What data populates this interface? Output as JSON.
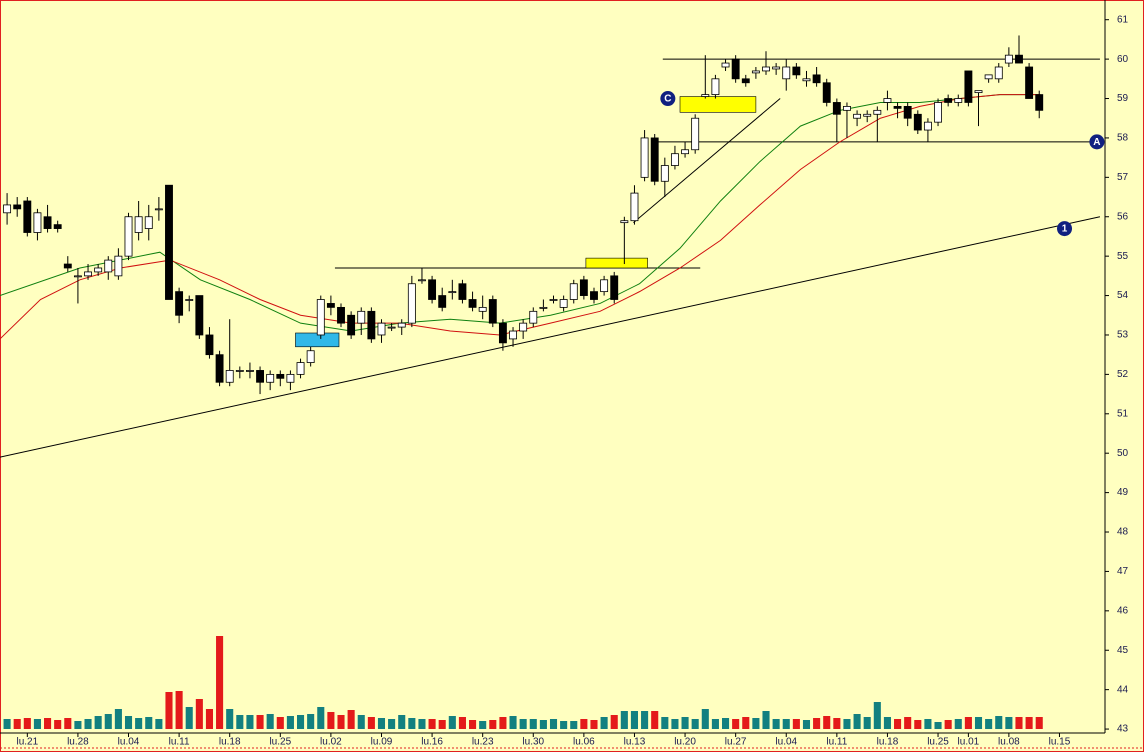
{
  "chart_data": {
    "type": "candlestick",
    "up_color": "#ffffff",
    "down_color": "#000000",
    "ylim": [
      42.9,
      61.5
    ],
    "xlim": [
      -0.7,
      108.5
    ],
    "yticks": [
      43,
      44,
      45,
      46,
      47,
      48,
      49,
      50,
      51,
      52,
      53,
      54,
      55,
      56,
      57,
      58,
      59,
      60,
      61
    ],
    "xticks": [
      {
        "value": 2,
        "label": "lu.21"
      },
      {
        "value": 7,
        "label": "lu.28"
      },
      {
        "value": 12,
        "label": "lu.04"
      },
      {
        "value": 17,
        "label": "lu.11"
      },
      {
        "value": 22,
        "label": "lu.18"
      },
      {
        "value": 27,
        "label": "lu.25"
      },
      {
        "value": 32,
        "label": "lu.02"
      },
      {
        "value": 37,
        "label": "lu.09"
      },
      {
        "value": 42,
        "label": "lu.16"
      },
      {
        "value": 47,
        "label": "lu.23"
      },
      {
        "value": 52,
        "label": "lu.30"
      },
      {
        "value": 57,
        "label": "lu.06"
      },
      {
        "value": 62,
        "label": "lu.13"
      },
      {
        "value": 67,
        "label": "lu.20"
      },
      {
        "value": 72,
        "label": "lu.27"
      },
      {
        "value": 77,
        "label": "lu.04"
      },
      {
        "value": 82,
        "label": "lu.11"
      },
      {
        "value": 87,
        "label": "lu.18"
      },
      {
        "value": 92,
        "label": "lu.25"
      },
      {
        "value": 95,
        "label": "lu.01"
      },
      {
        "value": 99,
        "label": "lu.08"
      },
      {
        "value": 104,
        "label": "lu.15"
      }
    ],
    "ohlc": [
      [
        56.1,
        56.6,
        55.8,
        56.3
      ],
      [
        56.3,
        56.5,
        56.0,
        56.2
      ],
      [
        56.4,
        56.5,
        55.5,
        55.6
      ],
      [
        55.6,
        56.2,
        55.4,
        56.1
      ],
      [
        56.0,
        56.3,
        55.6,
        55.7
      ],
      [
        55.8,
        55.9,
        55.6,
        55.7
      ],
      [
        54.8,
        55.0,
        54.6,
        54.7
      ],
      [
        54.5,
        54.7,
        53.8,
        54.5
      ],
      [
        54.5,
        54.8,
        54.4,
        54.6
      ],
      [
        54.6,
        54.8,
        54.5,
        54.7
      ],
      [
        54.6,
        55.0,
        54.4,
        54.9
      ],
      [
        54.5,
        55.2,
        54.4,
        55.0
      ],
      [
        55.0,
        56.1,
        54.9,
        56.0
      ],
      [
        55.6,
        56.4,
        55.4,
        56.0
      ],
      [
        55.7,
        56.3,
        55.4,
        56.0
      ],
      [
        56.2,
        56.5,
        55.9,
        56.2
      ],
      [
        56.8,
        56.8,
        53.9,
        53.9
      ],
      [
        54.1,
        54.2,
        53.3,
        53.5
      ],
      [
        53.9,
        54.0,
        53.6,
        53.9
      ],
      [
        54.0,
        54.0,
        52.9,
        53.0
      ],
      [
        53.0,
        53.2,
        52.4,
        52.5
      ],
      [
        52.5,
        52.6,
        51.7,
        51.8
      ],
      [
        51.8,
        53.4,
        51.7,
        52.1
      ],
      [
        52.1,
        52.2,
        51.9,
        52.1
      ],
      [
        52.1,
        52.3,
        51.9,
        52.1
      ],
      [
        52.1,
        52.2,
        51.5,
        51.8
      ],
      [
        51.8,
        52.1,
        51.6,
        52.0
      ],
      [
        52.0,
        52.1,
        51.7,
        51.9
      ],
      [
        51.8,
        52.1,
        51.6,
        52.0
      ],
      [
        52.0,
        52.4,
        51.9,
        52.3
      ],
      [
        52.3,
        52.7,
        52.2,
        52.6
      ],
      [
        53.0,
        54.0,
        52.9,
        53.9
      ],
      [
        53.8,
        54.0,
        53.5,
        53.7
      ],
      [
        53.7,
        53.8,
        53.2,
        53.3
      ],
      [
        53.5,
        53.6,
        52.9,
        53.0
      ],
      [
        53.3,
        53.7,
        53.0,
        53.6
      ],
      [
        53.6,
        53.7,
        52.8,
        52.9
      ],
      [
        53.0,
        53.4,
        52.8,
        53.3
      ],
      [
        53.2,
        53.3,
        53.1,
        53.2
      ],
      [
        53.2,
        53.4,
        53.0,
        53.3
      ],
      [
        53.3,
        54.5,
        53.2,
        54.3
      ],
      [
        54.4,
        54.7,
        54.3,
        54.4
      ],
      [
        54.4,
        54.5,
        53.8,
        53.9
      ],
      [
        54.0,
        54.2,
        53.6,
        53.7
      ],
      [
        54.1,
        54.4,
        53.9,
        54.1
      ],
      [
        54.3,
        54.4,
        53.8,
        53.9
      ],
      [
        53.9,
        54.1,
        53.6,
        53.7
      ],
      [
        53.6,
        54.0,
        53.4,
        53.7
      ],
      [
        53.9,
        54.0,
        53.2,
        53.3
      ],
      [
        53.3,
        53.4,
        52.6,
        52.8
      ],
      [
        52.9,
        53.2,
        52.7,
        53.1
      ],
      [
        53.1,
        53.4,
        52.9,
        53.3
      ],
      [
        53.3,
        53.7,
        53.2,
        53.6
      ],
      [
        53.7,
        53.9,
        53.6,
        53.7
      ],
      [
        53.9,
        54.0,
        53.8,
        53.9
      ],
      [
        53.7,
        54.0,
        53.6,
        53.9
      ],
      [
        53.9,
        54.4,
        53.8,
        54.3
      ],
      [
        54.4,
        54.5,
        53.9,
        54.0
      ],
      [
        54.1,
        54.2,
        53.8,
        53.9
      ],
      [
        54.1,
        54.5,
        54.0,
        54.4
      ],
      [
        54.5,
        54.6,
        53.8,
        53.9
      ],
      [
        55.85,
        56.0,
        54.8,
        55.9
      ],
      [
        55.9,
        56.8,
        55.8,
        56.6
      ],
      [
        57.0,
        58.2,
        56.9,
        58.0
      ],
      [
        58.0,
        58.1,
        56.8,
        56.9
      ],
      [
        56.9,
        57.5,
        56.5,
        57.3
      ],
      [
        57.3,
        57.8,
        57.2,
        57.6
      ],
      [
        57.6,
        57.9,
        57.5,
        57.7
      ],
      [
        57.7,
        58.6,
        57.6,
        58.5
      ],
      [
        59.05,
        60.1,
        59.0,
        59.1
      ],
      [
        59.1,
        59.6,
        59.0,
        59.5
      ],
      [
        59.8,
        60.0,
        59.7,
        59.9
      ],
      [
        60.0,
        60.1,
        59.4,
        59.5
      ],
      [
        59.5,
        59.6,
        59.3,
        59.4
      ],
      [
        59.65,
        59.8,
        59.5,
        59.7
      ],
      [
        59.7,
        60.2,
        59.6,
        59.8
      ],
      [
        59.75,
        59.9,
        59.6,
        59.8
      ],
      [
        59.5,
        60.0,
        59.2,
        59.8
      ],
      [
        59.8,
        59.9,
        59.5,
        59.6
      ],
      [
        59.45,
        59.7,
        59.3,
        59.5
      ],
      [
        59.6,
        59.8,
        59.3,
        59.4
      ],
      [
        59.4,
        59.5,
        58.8,
        58.9
      ],
      [
        58.9,
        59.0,
        57.9,
        58.6
      ],
      [
        58.7,
        58.9,
        58.0,
        58.8
      ],
      [
        58.5,
        58.7,
        58.3,
        58.6
      ],
      [
        58.55,
        58.7,
        58.4,
        58.6
      ],
      [
        58.6,
        58.8,
        57.9,
        58.7
      ],
      [
        58.9,
        59.2,
        58.7,
        59.0
      ],
      [
        58.8,
        58.9,
        58.5,
        58.75
      ],
      [
        58.8,
        58.9,
        58.3,
        58.5
      ],
      [
        58.6,
        58.7,
        58.1,
        58.2
      ],
      [
        58.2,
        58.5,
        57.9,
        58.4
      ],
      [
        58.4,
        59.0,
        58.3,
        58.9
      ],
      [
        59.0,
        59.1,
        58.8,
        58.9
      ],
      [
        58.9,
        59.1,
        58.8,
        59.0
      ],
      [
        59.7,
        59.7,
        58.8,
        58.9
      ],
      [
        59.15,
        59.2,
        58.3,
        59.2
      ],
      [
        59.5,
        59.6,
        59.4,
        59.6
      ],
      [
        59.5,
        59.9,
        59.4,
        59.8
      ],
      [
        59.9,
        60.3,
        59.8,
        60.1
      ],
      [
        60.1,
        60.6,
        59.9,
        59.9
      ],
      [
        59.8,
        59.9,
        59.0,
        59.0
      ],
      [
        59.1,
        59.2,
        58.5,
        58.7
      ]
    ],
    "volume": {
      "up_color": "#138080",
      "down_color": "#e41a1a",
      "values": [
        10,
        10,
        11,
        10,
        11,
        9,
        11,
        8,
        10,
        13,
        15,
        20,
        13,
        11,
        12,
        10,
        37,
        38,
        22,
        30,
        20,
        93,
        20,
        14,
        14,
        14,
        15,
        12,
        13,
        14,
        15,
        22,
        17,
        14,
        19,
        14,
        12,
        11,
        10,
        14,
        11,
        10,
        10,
        9,
        13,
        12,
        9,
        8,
        9,
        12,
        13,
        10,
        10,
        9,
        10,
        8,
        8,
        10,
        9,
        12,
        14,
        18,
        18,
        18,
        18,
        12,
        10,
        12,
        10,
        20,
        10,
        11,
        10,
        12,
        11,
        18,
        10,
        10,
        10,
        9,
        11,
        13,
        11,
        10,
        15,
        12,
        27,
        12,
        10,
        12,
        9,
        10,
        7,
        9,
        10,
        12,
        12,
        10,
        13,
        12,
        12,
        12,
        12
      ]
    },
    "moving_averages": [
      {
        "color": "#108010",
        "x": [
          -0.7,
          7.2,
          15.1,
          19.1,
          24,
          29,
          34,
          38.8,
          43.8,
          48.7,
          53.7,
          58.6,
          62.5,
          66.5,
          70.5,
          74.4,
          78.4,
          82.3,
          86.3,
          90.2,
          94.2,
          98.1,
          102.1
        ],
        "values": [
          54.0,
          54.7,
          55.1,
          54.4,
          53.9,
          53.3,
          53.1,
          53.3,
          53.4,
          53.3,
          53.5,
          53.8,
          54.3,
          55.2,
          56.4,
          57.4,
          58.3,
          58.7,
          58.9,
          58.9,
          59.0,
          59.1,
          59.1
        ]
      },
      {
        "color": "#d01010",
        "x": [
          -0.7,
          3.3,
          7.2,
          11.2,
          16.1,
          21,
          25,
          29,
          34,
          38.8,
          43.8,
          48.7,
          53.7,
          58.6,
          62.5,
          66.5,
          70.5,
          74.4,
          78.4,
          82.3,
          86.3,
          90.2,
          94.2,
          98.1,
          102.1
        ],
        "values": [
          52.9,
          53.9,
          54.4,
          54.7,
          54.9,
          54.4,
          53.9,
          53.5,
          53.3,
          53.3,
          53.1,
          53.0,
          53.3,
          53.6,
          54.1,
          54.7,
          55.4,
          56.3,
          57.2,
          57.9,
          58.5,
          58.8,
          59.0,
          59.1,
          59.1
        ]
      }
    ],
    "lines": [
      {
        "color": "#000000",
        "x": [
          -0.7,
          108.0
        ],
        "values": [
          49.9,
          56.0
        ]
      },
      {
        "color": "#000000",
        "x": [
          32.4,
          68.5
        ],
        "values": [
          54.7,
          54.7
        ]
      },
      {
        "color": "#000000",
        "x": [
          64.8,
          108.0
        ],
        "values": [
          60.0,
          60.0
        ]
      },
      {
        "color": "#000000",
        "x": [
          64.0,
          107.0
        ],
        "values": [
          57.9,
          57.9
        ]
      },
      {
        "color": "#000000",
        "x": [
          61.9,
          76.4
        ],
        "values": [
          55.85,
          59.0
        ]
      }
    ],
    "boxes": [
      {
        "color": "#30b8e8",
        "x": [
          28.5,
          32.8
        ],
        "values": [
          52.7,
          53.05
        ]
      },
      {
        "color": "#ffff00",
        "x": [
          57.2,
          63.3
        ],
        "values": [
          54.7,
          54.95
        ]
      },
      {
        "color": "#ffff00",
        "x": [
          66.5,
          74.0
        ],
        "values": [
          58.65,
          59.05
        ]
      }
    ],
    "markers": [
      {
        "label": "1",
        "color": "#102080",
        "x": 104.5,
        "y": 55.7
      },
      {
        "label": "A",
        "color": "#102080",
        "x": 107.7,
        "y": 57.9
      },
      {
        "label": "C",
        "color": "#102080",
        "x": 65.3,
        "y": 59.0
      }
    ]
  }
}
